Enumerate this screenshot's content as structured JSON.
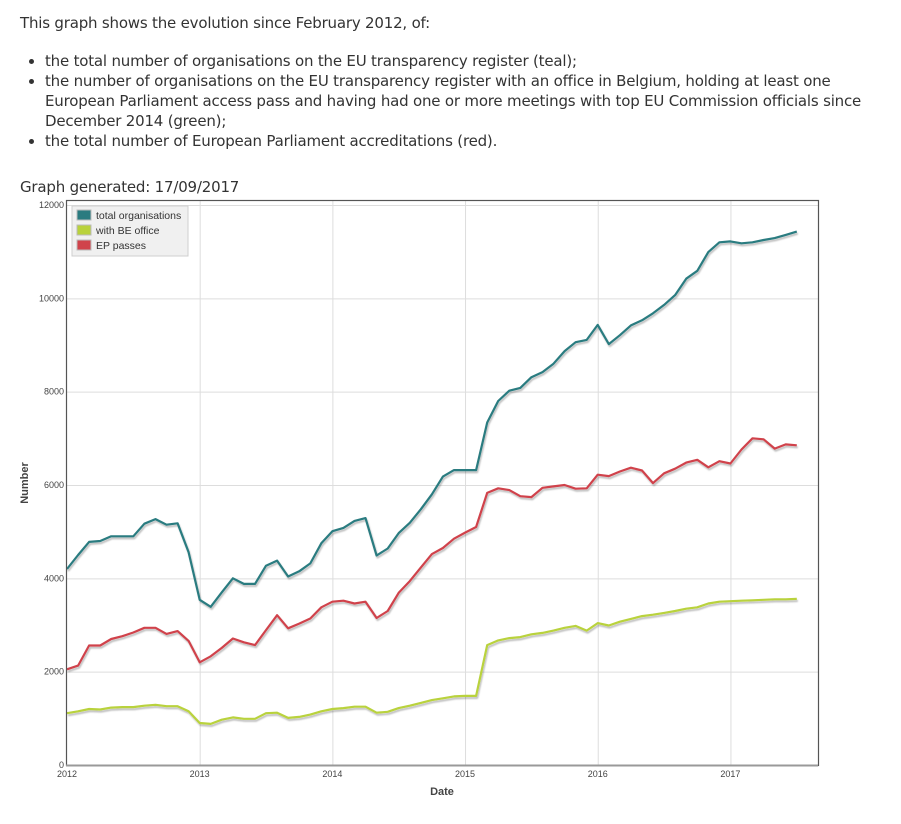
{
  "intro": {
    "lead": "This graph shows the evolution since February 2012, of:",
    "bullets": [
      "the total number of organisations on the EU transparency register (teal);",
      "the number of organisations on the EU transparency register with an office in Belgium, holding at least one European Parliament access pass and having had one or more meetings with top EU Commission officials since December 2014 (green);",
      "the total number of European Parliament accreditations (red)."
    ]
  },
  "generated": "Graph generated: 17/09/2017",
  "chart_data": {
    "type": "line",
    "title": "",
    "xlabel": "Date",
    "ylabel": "Number",
    "ylim": [
      0,
      12000
    ],
    "xlim": [
      2012.0,
      2017.66
    ],
    "x_start": 2012.0,
    "x_step_months": 1,
    "yticks": [
      "0",
      "2000",
      "4000",
      "6000",
      "8000",
      "10000",
      "12000"
    ],
    "ytick_values": [
      0,
      2000,
      4000,
      6000,
      8000,
      10000,
      12000
    ],
    "xticks": [
      "2012",
      "2013",
      "2014",
      "2015",
      "2016",
      "2017"
    ],
    "xtick_values": [
      2012,
      2013,
      2014,
      2015,
      2016,
      2017
    ],
    "grid": true,
    "legend_position": "top-left",
    "series": [
      {
        "name": "total organisations",
        "color": "#2a7b80",
        "values": [
          4200,
          4500,
          4780,
          4800,
          4900,
          4900,
          4900,
          5170,
          5270,
          5150,
          5180,
          4560,
          3540,
          3390,
          3700,
          4000,
          3880,
          3880,
          4270,
          4380,
          4040,
          4150,
          4320,
          4750,
          5010,
          5080,
          5230,
          5290,
          4490,
          4640,
          4970,
          5190,
          5480,
          5800,
          6180,
          6320,
          6320,
          6320,
          7340,
          7800,
          8020,
          8080,
          8310,
          8420,
          8600,
          8870,
          9060,
          9110,
          9430,
          9020,
          9210,
          9420,
          9530,
          9680,
          9860,
          10070,
          10420,
          10590,
          10990,
          11200,
          11220,
          11180,
          11200,
          11250,
          11290,
          11360,
          11430
        ]
      },
      {
        "name": "with BE office",
        "color": "#b9d23c",
        "values": [
          1110,
          1150,
          1200,
          1190,
          1230,
          1240,
          1240,
          1270,
          1290,
          1260,
          1260,
          1150,
          900,
          880,
          970,
          1020,
          990,
          990,
          1110,
          1120,
          1010,
          1030,
          1080,
          1150,
          1200,
          1220,
          1250,
          1250,
          1120,
          1140,
          1220,
          1270,
          1330,
          1390,
          1430,
          1470,
          1480,
          1480,
          2570,
          2670,
          2720,
          2740,
          2800,
          2830,
          2880,
          2940,
          2980,
          2880,
          3040,
          2990,
          3070,
          3130,
          3190,
          3220,
          3260,
          3300,
          3350,
          3380,
          3460,
          3500,
          3510,
          3520,
          3530,
          3540,
          3550,
          3550,
          3560
        ]
      },
      {
        "name": "EP passes",
        "color": "#d0434b",
        "values": [
          2050,
          2130,
          2560,
          2560,
          2700,
          2760,
          2840,
          2940,
          2940,
          2810,
          2870,
          2660,
          2200,
          2330,
          2510,
          2710,
          2630,
          2570,
          2890,
          3210,
          2930,
          3030,
          3140,
          3380,
          3500,
          3520,
          3460,
          3500,
          3150,
          3300,
          3690,
          3940,
          4230,
          4520,
          4650,
          4850,
          4980,
          5100,
          5830,
          5930,
          5890,
          5760,
          5740,
          5940,
          5970,
          6000,
          5920,
          5930,
          6220,
          6190,
          6290,
          6370,
          6310,
          6040,
          6250,
          6350,
          6480,
          6540,
          6380,
          6510,
          6460,
          6760,
          7000,
          6980,
          6780,
          6870,
          6850
        ]
      }
    ]
  }
}
